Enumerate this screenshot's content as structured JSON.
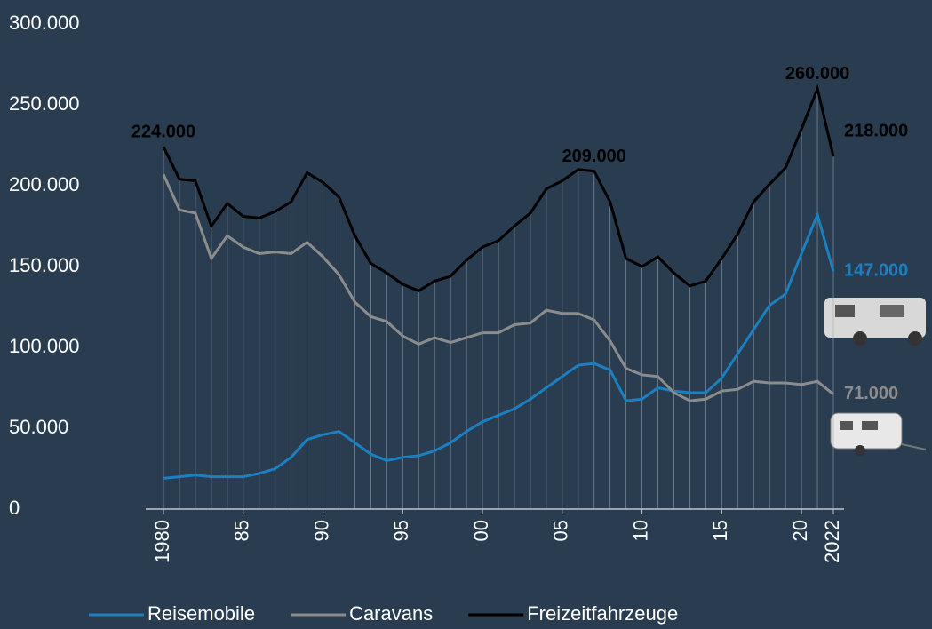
{
  "chart_data": {
    "type": "line",
    "categories": [
      "1980",
      null,
      null,
      null,
      null,
      "85",
      null,
      null,
      null,
      null,
      "90",
      null,
      null,
      null,
      null,
      "95",
      null,
      null,
      null,
      null,
      "00",
      null,
      null,
      null,
      null,
      "05",
      null,
      null,
      null,
      null,
      "10",
      null,
      null,
      null,
      null,
      "15",
      null,
      null,
      null,
      null,
      "20",
      null,
      "2022"
    ],
    "series": [
      {
        "name": "Reisemobile",
        "color": "#1b7fc0",
        "values": [
          19000,
          20000,
          21000,
          20000,
          20000,
          20000,
          22000,
          25000,
          32000,
          43000,
          46000,
          48000,
          41000,
          34000,
          30000,
          32000,
          33000,
          36000,
          41000,
          48000,
          54000,
          58000,
          62000,
          68000,
          75000,
          82000,
          89000,
          90000,
          86000,
          67000,
          68000,
          75000,
          73000,
          72000,
          72000,
          81000,
          96000,
          111000,
          126000,
          133000,
          158000,
          182000,
          147000
        ],
        "value_labels": [
          null,
          null,
          null,
          null,
          null,
          null,
          null,
          null,
          null,
          null,
          null,
          null,
          null,
          null,
          null,
          null,
          null,
          null,
          null,
          null,
          null,
          null,
          null,
          null,
          null,
          null,
          null,
          null,
          null,
          null,
          null,
          null,
          null,
          null,
          null,
          null,
          null,
          null,
          null,
          null,
          null,
          null,
          "147.000"
        ]
      },
      {
        "name": "Caravans",
        "color": "#8c8c8c",
        "values": [
          207000,
          185000,
          183000,
          155000,
          169000,
          162000,
          158000,
          159000,
          158000,
          165000,
          156000,
          145000,
          128000,
          119000,
          116000,
          107000,
          102000,
          106000,
          103000,
          106000,
          109000,
          109000,
          114000,
          115000,
          123000,
          121000,
          121000,
          117000,
          104000,
          87000,
          83000,
          82000,
          72000,
          67000,
          68000,
          73000,
          74000,
          79000,
          78000,
          78000,
          77000,
          79000,
          71000
        ],
        "value_labels": [
          null,
          null,
          null,
          null,
          null,
          null,
          null,
          null,
          null,
          null,
          null,
          null,
          null,
          null,
          null,
          null,
          null,
          null,
          null,
          null,
          null,
          null,
          null,
          null,
          null,
          null,
          null,
          null,
          null,
          null,
          null,
          null,
          null,
          null,
          null,
          null,
          null,
          null,
          null,
          null,
          null,
          null,
          "71.000"
        ]
      },
      {
        "name": "Freizeitfahrzeuge",
        "color": "#000000",
        "values": [
          224000,
          204000,
          203000,
          175000,
          189000,
          181000,
          180000,
          184000,
          190000,
          208000,
          202000,
          193000,
          169000,
          152000,
          146000,
          139000,
          135000,
          141000,
          144000,
          154000,
          162000,
          166000,
          175000,
          183000,
          198000,
          203000,
          210000,
          209000,
          190000,
          155000,
          150000,
          156000,
          146000,
          138000,
          141000,
          155000,
          170000,
          190000,
          201000,
          211000,
          235000,
          260000,
          218000
        ],
        "value_labels": [
          "224.000",
          null,
          null,
          null,
          null,
          null,
          null,
          null,
          null,
          null,
          null,
          null,
          null,
          null,
          null,
          null,
          null,
          null,
          null,
          null,
          null,
          null,
          null,
          null,
          null,
          null,
          null,
          "209.000",
          null,
          null,
          null,
          null,
          null,
          null,
          null,
          null,
          null,
          null,
          null,
          null,
          null,
          "260.000",
          "218.000"
        ]
      }
    ],
    "ylim": [
      0,
      300000
    ],
    "yticks": [
      0,
      {
        "value": 50000,
        "label": "50.000"
      },
      {
        "value": 100000,
        "label": "100.000"
      },
      {
        "value": 150000,
        "label": "150.000"
      },
      {
        "value": 200000,
        "label": "200.000"
      },
      {
        "value": 250000,
        "label": "250.000"
      },
      {
        "value": 300000,
        "label": "300.000"
      }
    ],
    "drop_lines": true
  }
}
